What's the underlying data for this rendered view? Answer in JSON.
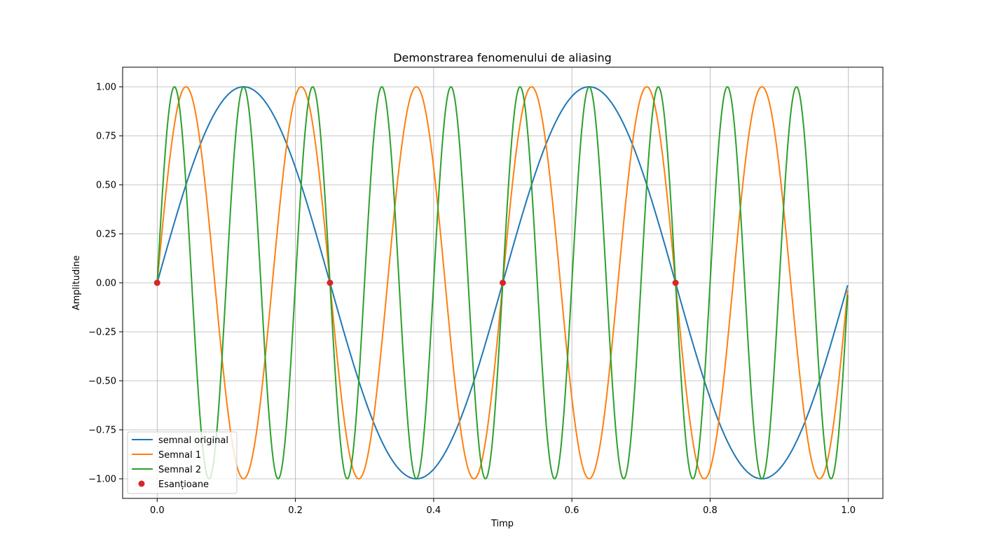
{
  "chart_data": {
    "type": "line",
    "title": "Demonstrarea fenomenului de aliasing",
    "xlabel": "Timp",
    "ylabel": "Amplitudine",
    "xlim": [
      -0.05,
      1.05
    ],
    "ylim": [
      -1.1,
      1.1
    ],
    "xticks": [
      0.0,
      0.2,
      0.4,
      0.6,
      0.8,
      1.0
    ],
    "xtick_labels": [
      "0.0",
      "0.2",
      "0.4",
      "0.6",
      "0.8",
      "1.0"
    ],
    "yticks": [
      -1.0,
      -0.75,
      -0.5,
      -0.25,
      0.0,
      0.25,
      0.5,
      0.75,
      1.0
    ],
    "ytick_labels": [
      "−1.00",
      "−0.75",
      "−0.50",
      "−0.25",
      "0.00",
      "0.25",
      "0.50",
      "0.75",
      "1.00"
    ],
    "grid": true,
    "legend_position": "lower-left",
    "x_range": [
      0.0,
      1.0
    ],
    "series": [
      {
        "name": "semnal original",
        "kind": "line",
        "function": "sin",
        "frequency": 2,
        "color": "#1f77b4"
      },
      {
        "name": "Semnal 1",
        "kind": "line",
        "function": "sin",
        "frequency": 6,
        "color": "#ff7f0e"
      },
      {
        "name": "Semnal 2",
        "kind": "line",
        "function": "sin",
        "frequency": 10,
        "color": "#2ca02c"
      },
      {
        "name": "Esanțioane",
        "kind": "markers",
        "color": "#d62728",
        "x": [
          0.0,
          0.25,
          0.5,
          0.75
        ],
        "y": [
          0.0,
          0.0,
          0.0,
          0.0
        ]
      }
    ]
  }
}
